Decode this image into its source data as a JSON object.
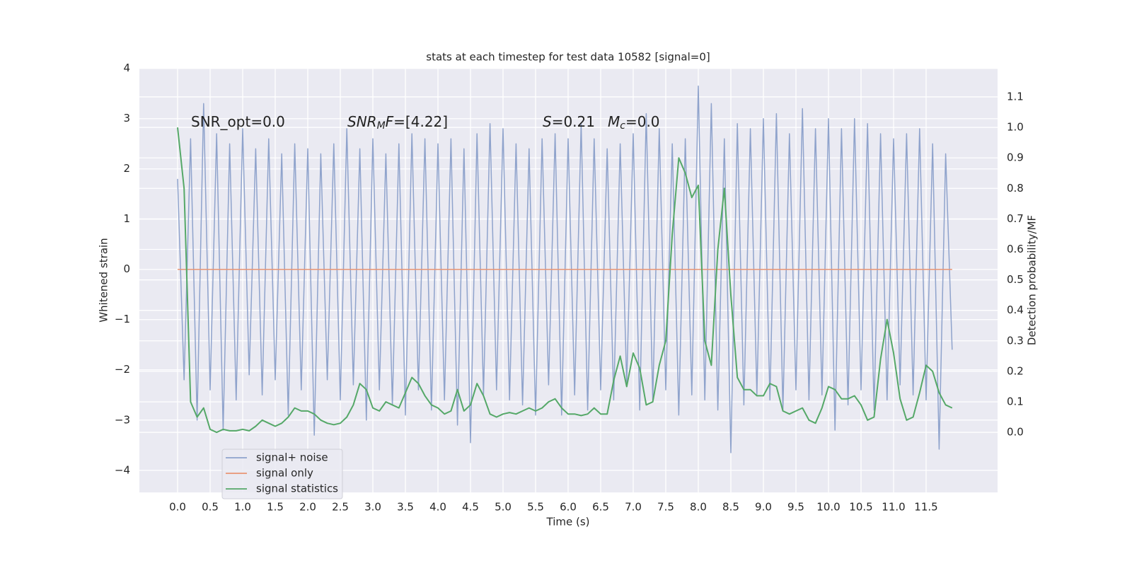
{
  "chart_data": {
    "type": "line",
    "title": "stats at each timestep for test data 10582 [signal=0]",
    "xlabel": "Time (s)",
    "ylabel": "Whitened strain",
    "y2label": "Detection probability/MF",
    "x": [
      0.0,
      0.1,
      0.2,
      0.3,
      0.4,
      0.5,
      0.6,
      0.7,
      0.8,
      0.9,
      1.0,
      1.1,
      1.2,
      1.3,
      1.4,
      1.5,
      1.6,
      1.7,
      1.8,
      1.9,
      2.0,
      2.1,
      2.2,
      2.3,
      2.4,
      2.5,
      2.6,
      2.7,
      2.8,
      2.9,
      3.0,
      3.1,
      3.2,
      3.3,
      3.4,
      3.5,
      3.6,
      3.7,
      3.8,
      3.9,
      4.0,
      4.1,
      4.2,
      4.3,
      4.4,
      4.5,
      4.6,
      4.7,
      4.8,
      4.9,
      5.0,
      5.1,
      5.2,
      5.3,
      5.4,
      5.5,
      5.6,
      5.7,
      5.8,
      5.9,
      6.0,
      6.1,
      6.2,
      6.3,
      6.4,
      6.5,
      6.6,
      6.7,
      6.8,
      6.9,
      7.0,
      7.1,
      7.2,
      7.3,
      7.4,
      7.5,
      7.6,
      7.7,
      7.8,
      7.9,
      8.0,
      8.1,
      8.2,
      8.3,
      8.4,
      8.5,
      8.6,
      8.7,
      8.8,
      8.9,
      9.0,
      9.1,
      9.2,
      9.3,
      9.4,
      9.5,
      9.6,
      9.7,
      9.8,
      9.9,
      10.0,
      10.1,
      10.2,
      10.3,
      10.4,
      10.5,
      10.6,
      10.7,
      10.8,
      10.9,
      11.0,
      11.1,
      11.2,
      11.3,
      11.4,
      11.5,
      11.6,
      11.7,
      11.8,
      11.9
    ],
    "series": [
      {
        "name": "signal+ noise",
        "color": "#8fa3cc",
        "values": [
          1.8,
          -2.2,
          2.6,
          -3.0,
          3.3,
          -2.4,
          2.7,
          -3.2,
          2.5,
          -2.6,
          2.8,
          -2.1,
          2.4,
          -2.5,
          2.6,
          -2.2,
          2.3,
          -2.9,
          2.5,
          -2.4,
          2.4,
          -3.3,
          2.3,
          -2.2,
          2.5,
          -2.6,
          2.8,
          -2.3,
          2.4,
          -3.0,
          2.6,
          -2.4,
          2.3,
          -2.7,
          2.5,
          -2.9,
          2.7,
          -2.4,
          2.6,
          -2.8,
          2.5,
          -2.6,
          2.6,
          -3.1,
          2.4,
          -3.45,
          2.7,
          -2.5,
          2.9,
          -2.4,
          2.8,
          -2.6,
          2.5,
          -2.7,
          2.4,
          -2.9,
          2.6,
          -2.3,
          2.7,
          -2.9,
          2.6,
          -2.5,
          2.9,
          -2.8,
          2.6,
          -2.4,
          2.4,
          -2.6,
          2.5,
          -2.3,
          2.7,
          -2.8,
          3.1,
          -2.6,
          2.8,
          -2.4,
          2.5,
          -2.9,
          2.6,
          -2.5,
          3.65,
          -2.6,
          3.3,
          -2.8,
          2.6,
          -3.65,
          2.9,
          -2.7,
          2.8,
          -2.5,
          3.0,
          -2.6,
          3.1,
          -2.8,
          2.7,
          -2.4,
          3.2,
          -2.6,
          2.8,
          -2.5,
          3.0,
          -3.2,
          2.8,
          -2.7,
          3.0,
          -2.4,
          2.9,
          -2.8,
          2.7,
          -2.6,
          2.6,
          -2.3,
          2.7,
          -2.5,
          2.8,
          -2.6,
          2.5,
          -3.58,
          2.3,
          -1.6
        ]
      },
      {
        "name": "signal only",
        "color": "#e99675",
        "x": [
          0.0,
          11.9
        ],
        "values": [
          0,
          0
        ]
      },
      {
        "name": "signal statistics",
        "color": "#55a868",
        "axis": "y2",
        "values": [
          1.0,
          0.8,
          0.1,
          0.05,
          0.08,
          0.01,
          0.0,
          0.01,
          0.005,
          0.005,
          0.01,
          0.005,
          0.02,
          0.04,
          0.03,
          0.02,
          0.03,
          0.05,
          0.08,
          0.07,
          0.07,
          0.06,
          0.04,
          0.03,
          0.025,
          0.03,
          0.05,
          0.09,
          0.16,
          0.14,
          0.08,
          0.07,
          0.1,
          0.09,
          0.08,
          0.13,
          0.18,
          0.16,
          0.12,
          0.09,
          0.08,
          0.06,
          0.07,
          0.14,
          0.07,
          0.09,
          0.16,
          0.12,
          0.06,
          0.05,
          0.06,
          0.065,
          0.06,
          0.07,
          0.08,
          0.07,
          0.08,
          0.1,
          0.11,
          0.08,
          0.06,
          0.06,
          0.055,
          0.06,
          0.08,
          0.06,
          0.06,
          0.17,
          0.25,
          0.15,
          0.26,
          0.21,
          0.09,
          0.1,
          0.22,
          0.3,
          0.65,
          0.9,
          0.85,
          0.77,
          0.81,
          0.3,
          0.22,
          0.6,
          0.8,
          0.45,
          0.18,
          0.14,
          0.14,
          0.12,
          0.12,
          0.16,
          0.15,
          0.07,
          0.06,
          0.07,
          0.08,
          0.04,
          0.03,
          0.08,
          0.15,
          0.14,
          0.11,
          0.11,
          0.12,
          0.09,
          0.04,
          0.05,
          0.24,
          0.37,
          0.26,
          0.11,
          0.04,
          0.05,
          0.13,
          0.22,
          0.2,
          0.13,
          0.09,
          0.08
        ]
      }
    ],
    "xlim": [
      -0.587,
      12.598
    ],
    "ylim": [
      -4.44,
      4.01
    ],
    "y2lim": [
      -0.197,
      1.195
    ],
    "xticks": [
      {
        "value": 0,
        "label": "0.0"
      },
      0.5,
      {
        "value": 1,
        "label": "1.0"
      },
      1.5,
      {
        "value": 2,
        "label": "2.0"
      },
      2.5,
      {
        "value": 3,
        "label": "3.0"
      },
      3.5,
      {
        "value": 4,
        "label": "4.0"
      },
      4.5,
      {
        "value": 5,
        "label": "5.0"
      },
      5.5,
      {
        "value": 6,
        "label": "6.0"
      },
      6.5,
      {
        "value": 7,
        "label": "7.0"
      },
      7.5,
      {
        "value": 8,
        "label": "8.0"
      },
      8.5,
      {
        "value": 9,
        "label": "9.0"
      },
      9.5,
      {
        "value": 10,
        "label": "10.0"
      },
      10.5,
      {
        "value": 11,
        "label": "11.0"
      },
      11.5
    ],
    "yticks": [
      {
        "value": -4,
        "label": "−4"
      },
      {
        "value": -3,
        "label": "−3"
      },
      {
        "value": -2,
        "label": "−2"
      },
      {
        "value": -1,
        "label": "−1"
      },
      0,
      1,
      2,
      3,
      4
    ],
    "y2ticks": [
      {
        "value": 0,
        "label": "0.0"
      },
      0.1,
      0.2,
      0.3,
      0.4,
      0.5,
      0.6,
      0.7,
      0.8,
      0.9,
      {
        "value": 1,
        "label": "1.0"
      },
      1.1
    ],
    "grid": true,
    "legend": "lower left",
    "annotations": [
      [
        {
          "text": "SNR_opt=0.0"
        }
      ],
      [
        {
          "text": "SNR",
          "italic": true
        },
        {
          "text": "M",
          "italic": true,
          "sub": true
        },
        {
          "text": "F",
          "italic": true
        },
        {
          "text": "=[4.22]"
        }
      ],
      [
        {
          "text": "S",
          "italic": true
        },
        {
          "text": "=0.21"
        }
      ],
      [
        {
          "text": "M",
          "italic": true
        },
        {
          "text": "c",
          "italic": true,
          "sub": true
        },
        {
          "text": "=0.0"
        }
      ]
    ]
  }
}
